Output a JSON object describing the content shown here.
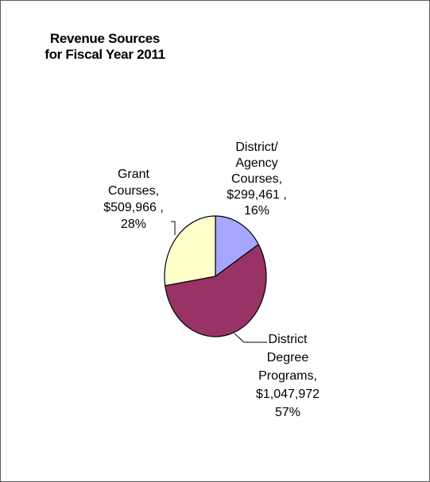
{
  "chart_data": {
    "type": "pie",
    "title_lines": [
      "Revenue Sources",
      "for Fiscal Year 2011"
    ],
    "slices": [
      {
        "category": "District/ Agency Courses",
        "value": 299461,
        "percent": 16,
        "color": "#a6a6ff",
        "label_lines": [
          "District/",
          "Agency",
          "Courses,",
          "$299,461 ,",
          "16%"
        ]
      },
      {
        "category": "District Degree Programs",
        "value": 1047972,
        "percent": 57,
        "color": "#993366",
        "label_lines": [
          "District",
          "Degree",
          "Programs,",
          "$1,047,972",
          "57%"
        ]
      },
      {
        "category": "Grant Courses",
        "value": 509966,
        "percent": 28,
        "color": "#ffffcc",
        "label_lines": [
          "Grant",
          "Courses,",
          "$509,966 ,",
          "28%"
        ]
      }
    ],
    "legend": "none",
    "start_angle_deg": 0,
    "direction": "clockwise"
  }
}
